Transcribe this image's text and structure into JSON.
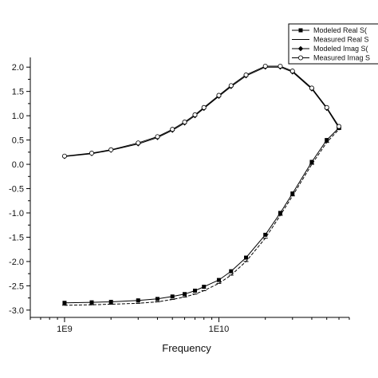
{
  "chart_data": {
    "type": "line",
    "xlabel": "Frequency",
    "ylabel": "",
    "xscale": "log",
    "xlim": [
      600000000,
      70000000000
    ],
    "ylim": [
      -3.15,
      2.2
    ],
    "x_ticks": [
      {
        "value": 1000000000,
        "label": "1E9"
      },
      {
        "value": 10000000000,
        "label": "1E10"
      }
    ],
    "y_ticks": [
      {
        "value": 2.0,
        "label": "2.0"
      },
      {
        "value": 1.5,
        "label": "1.5"
      },
      {
        "value": 1.0,
        "label": "1.0"
      },
      {
        "value": 0.5,
        "label": "0.5"
      },
      {
        "value": 0.0,
        "label": "0.0"
      },
      {
        "value": -0.5,
        "label": "-0.5"
      },
      {
        "value": -1.0,
        "label": "-1.0"
      },
      {
        "value": -1.5,
        "label": "-1.5"
      },
      {
        "value": -2.0,
        "label": "-2.0"
      },
      {
        "value": -2.5,
        "label": "-2.5"
      },
      {
        "value": -3.0,
        "label": "-3.0"
      }
    ],
    "legend_position": "top-right",
    "series": [
      {
        "name": "Modeled Real S(",
        "marker": "filled-square",
        "x": [
          1000000000,
          1500000000,
          2000000000,
          3000000000,
          4000000000,
          5000000000,
          6000000000,
          7000000000,
          8000000000,
          10000000000,
          12000000000,
          15000000000,
          20000000000,
          25000000000,
          30000000000,
          40000000000,
          50000000000,
          60000000000
        ],
        "values": [
          -2.85,
          -2.84,
          -2.83,
          -2.8,
          -2.77,
          -2.72,
          -2.67,
          -2.6,
          -2.52,
          -2.38,
          -2.2,
          -1.92,
          -1.45,
          -1.0,
          -0.6,
          0.05,
          0.5,
          0.75
        ]
      },
      {
        "name": "Measured Real S",
        "marker": "dash",
        "x": [
          1000000000,
          1500000000,
          2000000000,
          3000000000,
          4000000000,
          5000000000,
          6000000000,
          7000000000,
          8000000000,
          10000000000,
          12000000000,
          15000000000,
          20000000000,
          25000000000,
          30000000000,
          40000000000,
          50000000000,
          60000000000
        ],
        "values": [
          -2.9,
          -2.89,
          -2.88,
          -2.86,
          -2.83,
          -2.78,
          -2.73,
          -2.67,
          -2.6,
          -2.45,
          -2.28,
          -2.0,
          -1.52,
          -1.05,
          -0.65,
          0.0,
          0.45,
          0.72
        ]
      },
      {
        "name": "Modeled Imag S(",
        "marker": "filled-diamond",
        "x": [
          1000000000,
          1500000000,
          2000000000,
          3000000000,
          4000000000,
          5000000000,
          6000000000,
          7000000000,
          8000000000,
          10000000000,
          12000000000,
          15000000000,
          20000000000,
          25000000000,
          30000000000,
          40000000000,
          50000000000,
          60000000000
        ],
        "values": [
          0.16,
          0.22,
          0.29,
          0.42,
          0.55,
          0.7,
          0.85,
          1.0,
          1.15,
          1.4,
          1.6,
          1.82,
          2.0,
          2.0,
          1.9,
          1.55,
          1.15,
          0.75
        ]
      },
      {
        "name": "Measured Imag S",
        "marker": "open-circle",
        "x": [
          1000000000,
          1500000000,
          2000000000,
          3000000000,
          4000000000,
          5000000000,
          6000000000,
          7000000000,
          8000000000,
          10000000000,
          12000000000,
          15000000000,
          20000000000,
          25000000000,
          30000000000,
          40000000000,
          50000000000,
          60000000000
        ],
        "values": [
          0.17,
          0.23,
          0.3,
          0.44,
          0.57,
          0.72,
          0.87,
          1.02,
          1.17,
          1.42,
          1.62,
          1.84,
          2.02,
          2.02,
          1.92,
          1.57,
          1.17,
          0.78
        ]
      }
    ]
  }
}
